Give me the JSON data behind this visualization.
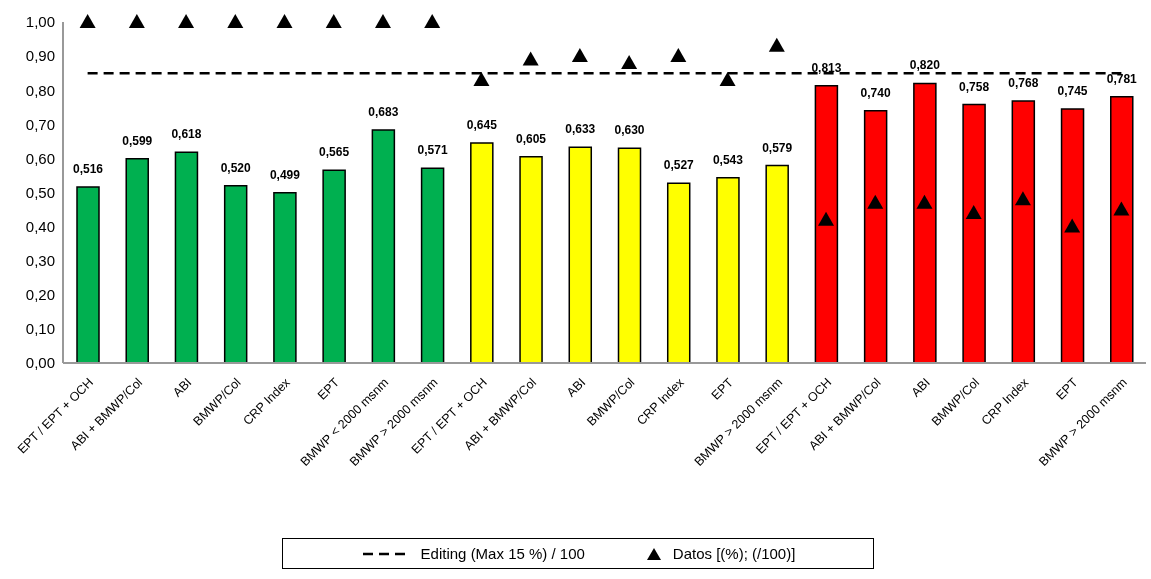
{
  "chart_data": {
    "type": "bar",
    "categories": [
      "EPT / EPT + OCH",
      "ABI + BMWP/Col",
      "ABI",
      "BMWP/Col",
      "CRP Index",
      "EPT",
      "BMWP < 2000 msnm",
      "BMWP > 2000 msnm",
      "EPT / EPT + OCH",
      "ABI + BMWP/Col",
      "ABI",
      "BMWP/Col",
      "CRP Index",
      "EPT",
      "BMWP > 2000 msnm",
      "EPT / EPT + OCH",
      "ABI + BMWP/Col",
      "ABI",
      "BMWP/Col",
      "CRP Index",
      "EPT",
      "BMWP > 2000 msnm"
    ],
    "series": [
      {
        "colors": [
          "#00b050",
          "#00b050",
          "#00b050",
          "#00b050",
          "#00b050",
          "#00b050",
          "#00b050",
          "#00b050",
          "#ffff00",
          "#ffff00",
          "#ffff00",
          "#ffff00",
          "#ffff00",
          "#ffff00",
          "#ffff00",
          "#ff0000",
          "#ff0000",
          "#ff0000",
          "#ff0000",
          "#ff0000",
          "#ff0000",
          "#ff0000"
        ],
        "values": [
          0.516,
          0.599,
          0.618,
          0.52,
          0.499,
          0.565,
          0.683,
          0.571,
          0.645,
          0.605,
          0.633,
          0.63,
          0.527,
          0.543,
          0.579,
          0.813,
          0.74,
          0.82,
          0.758,
          0.768,
          0.745,
          0.781
        ],
        "value_labels": [
          "0,516",
          "0,599",
          "0,618",
          "0,520",
          "0,499",
          "0,565",
          "0,683",
          "0,571",
          "0,645",
          "0,605",
          "0,633",
          "0,630",
          "0,527",
          "0,543",
          "0,579",
          "0,813",
          "0,740",
          "0,820",
          "0,758",
          "0,768",
          "0,745",
          "0,781"
        ]
      },
      {
        "type": "line",
        "name": "Editing (Max 15 %) / 100",
        "color": "#000000",
        "line_style": "dashed",
        "marker": "none",
        "values": [
          0.85,
          0.85,
          0.85,
          0.85,
          0.85,
          0.85,
          0.85,
          0.85,
          0.85,
          0.85,
          0.85,
          0.85,
          0.85,
          0.85,
          0.85,
          0.85,
          0.85,
          0.85,
          0.85,
          0.85,
          0.85,
          0.85
        ]
      },
      {
        "type": "scatter",
        "name": "Datos [(%); (/100)]",
        "color": "#000000",
        "marker": "triangle",
        "values": [
          1,
          1,
          1,
          1,
          1,
          1,
          1,
          1,
          0.83,
          0.89,
          0.9,
          0.88,
          0.9,
          0.83,
          0.93,
          0.42,
          0.47,
          0.47,
          0.44,
          0.48,
          0.4,
          0.45
        ]
      }
    ],
    "ylim": [
      0,
      1
    ],
    "yticks": [
      {
        "value": 0,
        "label": "0,00"
      },
      {
        "value": 0.1,
        "label": "0,10"
      },
      {
        "value": 0.2,
        "label": "0,20"
      },
      {
        "value": 0.3,
        "label": "0,30"
      },
      {
        "value": 0.4,
        "label": "0,40"
      },
      {
        "value": 0.5,
        "label": "0,50"
      },
      {
        "value": 0.6,
        "label": "0,60"
      },
      {
        "value": 0.7,
        "label": "0,70"
      },
      {
        "value": 0.8,
        "label": "0,80"
      },
      {
        "value": 0.9,
        "label": "0,90"
      },
      {
        "value": 1,
        "label": "1,00"
      }
    ],
    "grid": false,
    "legend": "bottom"
  }
}
